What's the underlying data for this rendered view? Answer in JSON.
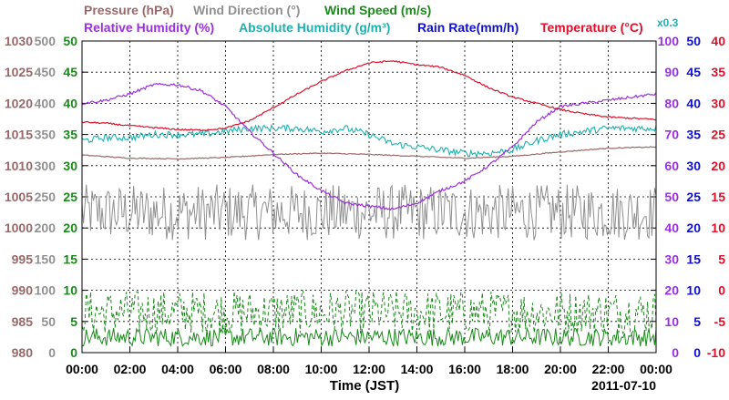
{
  "chart_data": {
    "type": "line",
    "legend": {
      "placement": "top",
      "row1": [
        {
          "key": "pressure",
          "label": "Pressure (hPa)",
          "color": "#9a6868"
        },
        {
          "key": "wind_dir",
          "label": "Wind Direction (°)",
          "color": "#909090"
        },
        {
          "key": "wind_speed",
          "label": "Wind Speed (m/s)",
          "color": "#1a8a1a"
        }
      ],
      "row2": [
        {
          "key": "rh",
          "label": "Relative Humidity (%)",
          "color": "#9b30e0"
        },
        {
          "key": "ah",
          "label": "Absolute Humidity (g/m³)",
          "color": "#20b0b0"
        },
        {
          "key": "rain",
          "label": "Rain Rate(mm/h)",
          "color": "#1010d0"
        },
        {
          "key": "temp",
          "label": "Temperature (°C)",
          "color": "#e0102a"
        }
      ],
      "ah_factor_label": "x0.3"
    },
    "axes": {
      "pressure": {
        "ticks": [
          "1030",
          "1025",
          "1020",
          "1015",
          "1010",
          "1005",
          "1000",
          "995",
          "990",
          "985",
          "980"
        ],
        "color": "#9a6868",
        "range": [
          980,
          1030
        ]
      },
      "wind_dir": {
        "ticks": [
          "500",
          "450",
          "400",
          "350",
          "300",
          "250",
          "200",
          "150",
          "100",
          "50",
          "0"
        ],
        "color": "#909090",
        "range": [
          0,
          500
        ]
      },
      "wind_speed": {
        "ticks": [
          "50",
          "45",
          "40",
          "35",
          "30",
          "25",
          "20",
          "15",
          "10",
          "5",
          "0"
        ],
        "color": "#1a8a1a",
        "range": [
          0,
          50
        ]
      },
      "rh": {
        "ticks": [
          "100",
          "90",
          "80",
          "70",
          "60",
          "50",
          "40",
          "30",
          "20",
          "10",
          "0"
        ],
        "color": "#9b30e0",
        "range": [
          0,
          100
        ]
      },
      "rain": {
        "ticks": [
          "50",
          "45",
          "40",
          "35",
          "30",
          "25",
          "20",
          "15",
          "10",
          "5",
          "0"
        ],
        "color": "#1010d0",
        "range": [
          0,
          50
        ]
      },
      "temp": {
        "ticks": [
          "40",
          "35",
          "30",
          "25",
          "20",
          "15",
          "10",
          "5",
          "0",
          "-5",
          "-10"
        ],
        "color": "#e0102a",
        "range": [
          -10,
          40
        ]
      }
    },
    "x_ticks": [
      "00:00",
      "02:00",
      "04:00",
      "06:00",
      "08:00",
      "10:00",
      "12:00",
      "14:00",
      "16:00",
      "18:00",
      "20:00",
      "22:00",
      "00:00"
    ],
    "xlabel": "Time (JST)",
    "date": "2011-07-10",
    "grid": true,
    "series": {
      "pressure": {
        "x": [
          0,
          2,
          4,
          6,
          8,
          10,
          12,
          14,
          16,
          18,
          20,
          22,
          24
        ],
        "y": [
          1011.7,
          1011.2,
          1011.1,
          1011.3,
          1011.8,
          1012.0,
          1011.8,
          1011.5,
          1011.2,
          1011.5,
          1012.2,
          1012.8,
          1013.0
        ]
      },
      "temp": {
        "x": [
          0,
          1,
          2,
          3,
          4,
          5,
          6,
          7,
          8,
          9,
          10,
          11,
          12,
          13,
          14,
          15,
          16,
          17,
          18,
          19,
          20,
          21,
          22,
          23,
          24
        ],
        "y": [
          27.0,
          26.8,
          26.4,
          26.1,
          25.8,
          25.7,
          26.0,
          27.2,
          29.3,
          31.5,
          33.5,
          35.2,
          36.5,
          36.8,
          36.2,
          35.8,
          34.5,
          32.5,
          31.0,
          30.0,
          29.0,
          28.3,
          27.8,
          27.6,
          27.4
        ]
      },
      "rh": {
        "x": [
          0,
          1,
          2,
          3,
          3.5,
          4,
          5,
          6,
          7,
          8,
          9,
          10,
          11,
          12,
          13,
          14,
          15,
          16,
          17,
          18,
          19,
          20,
          21,
          22,
          23,
          24
        ],
        "y": [
          80,
          81,
          83,
          86,
          86,
          86,
          84,
          79,
          71,
          64,
          57,
          52,
          48,
          47,
          46,
          48,
          52,
          55,
          60,
          66,
          74,
          79,
          80,
          81,
          82,
          83
        ]
      },
      "ah": {
        "x": [
          0,
          1,
          2,
          3,
          4,
          5,
          6,
          7,
          8,
          9,
          10,
          11,
          12,
          13,
          14,
          15,
          16,
          17,
          18,
          19,
          20,
          21,
          22,
          23,
          24
        ],
        "y": [
          68,
          69,
          69,
          70,
          70,
          70,
          71,
          72,
          72,
          72,
          71,
          72,
          70,
          67,
          66,
          65,
          64,
          64,
          65,
          68,
          70,
          71,
          72,
          72,
          72
        ]
      },
      "wind_dir_range": {
        "min": 180,
        "max": 270
      },
      "wind_speed_avg_range": {
        "min": 1,
        "max": 4
      },
      "wind_speed_gust_range": {
        "min": 3,
        "max": 10
      },
      "rain": {
        "x": [
          0,
          24
        ],
        "y": [
          0,
          0
        ]
      }
    }
  }
}
